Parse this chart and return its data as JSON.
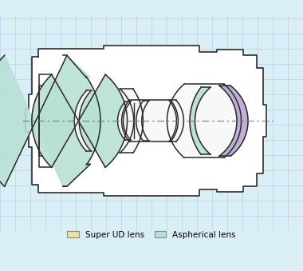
{
  "bg_color": "#daeef5",
  "grid_color": "#b8d8e8",
  "lens_body_color": "#ffffff",
  "lens_outline_color": "#2a2a2a",
  "axis_color": "#777777",
  "aspherical_color": "#b8e0d4",
  "super_ud_color": "#e8e4a0",
  "purple_color": "#b8a8d0",
  "legend_super_ud": "Super UD lens",
  "legend_aspherical": "Aspherical lens",
  "figsize": [
    3.8,
    3.39
  ],
  "dpi": 100
}
